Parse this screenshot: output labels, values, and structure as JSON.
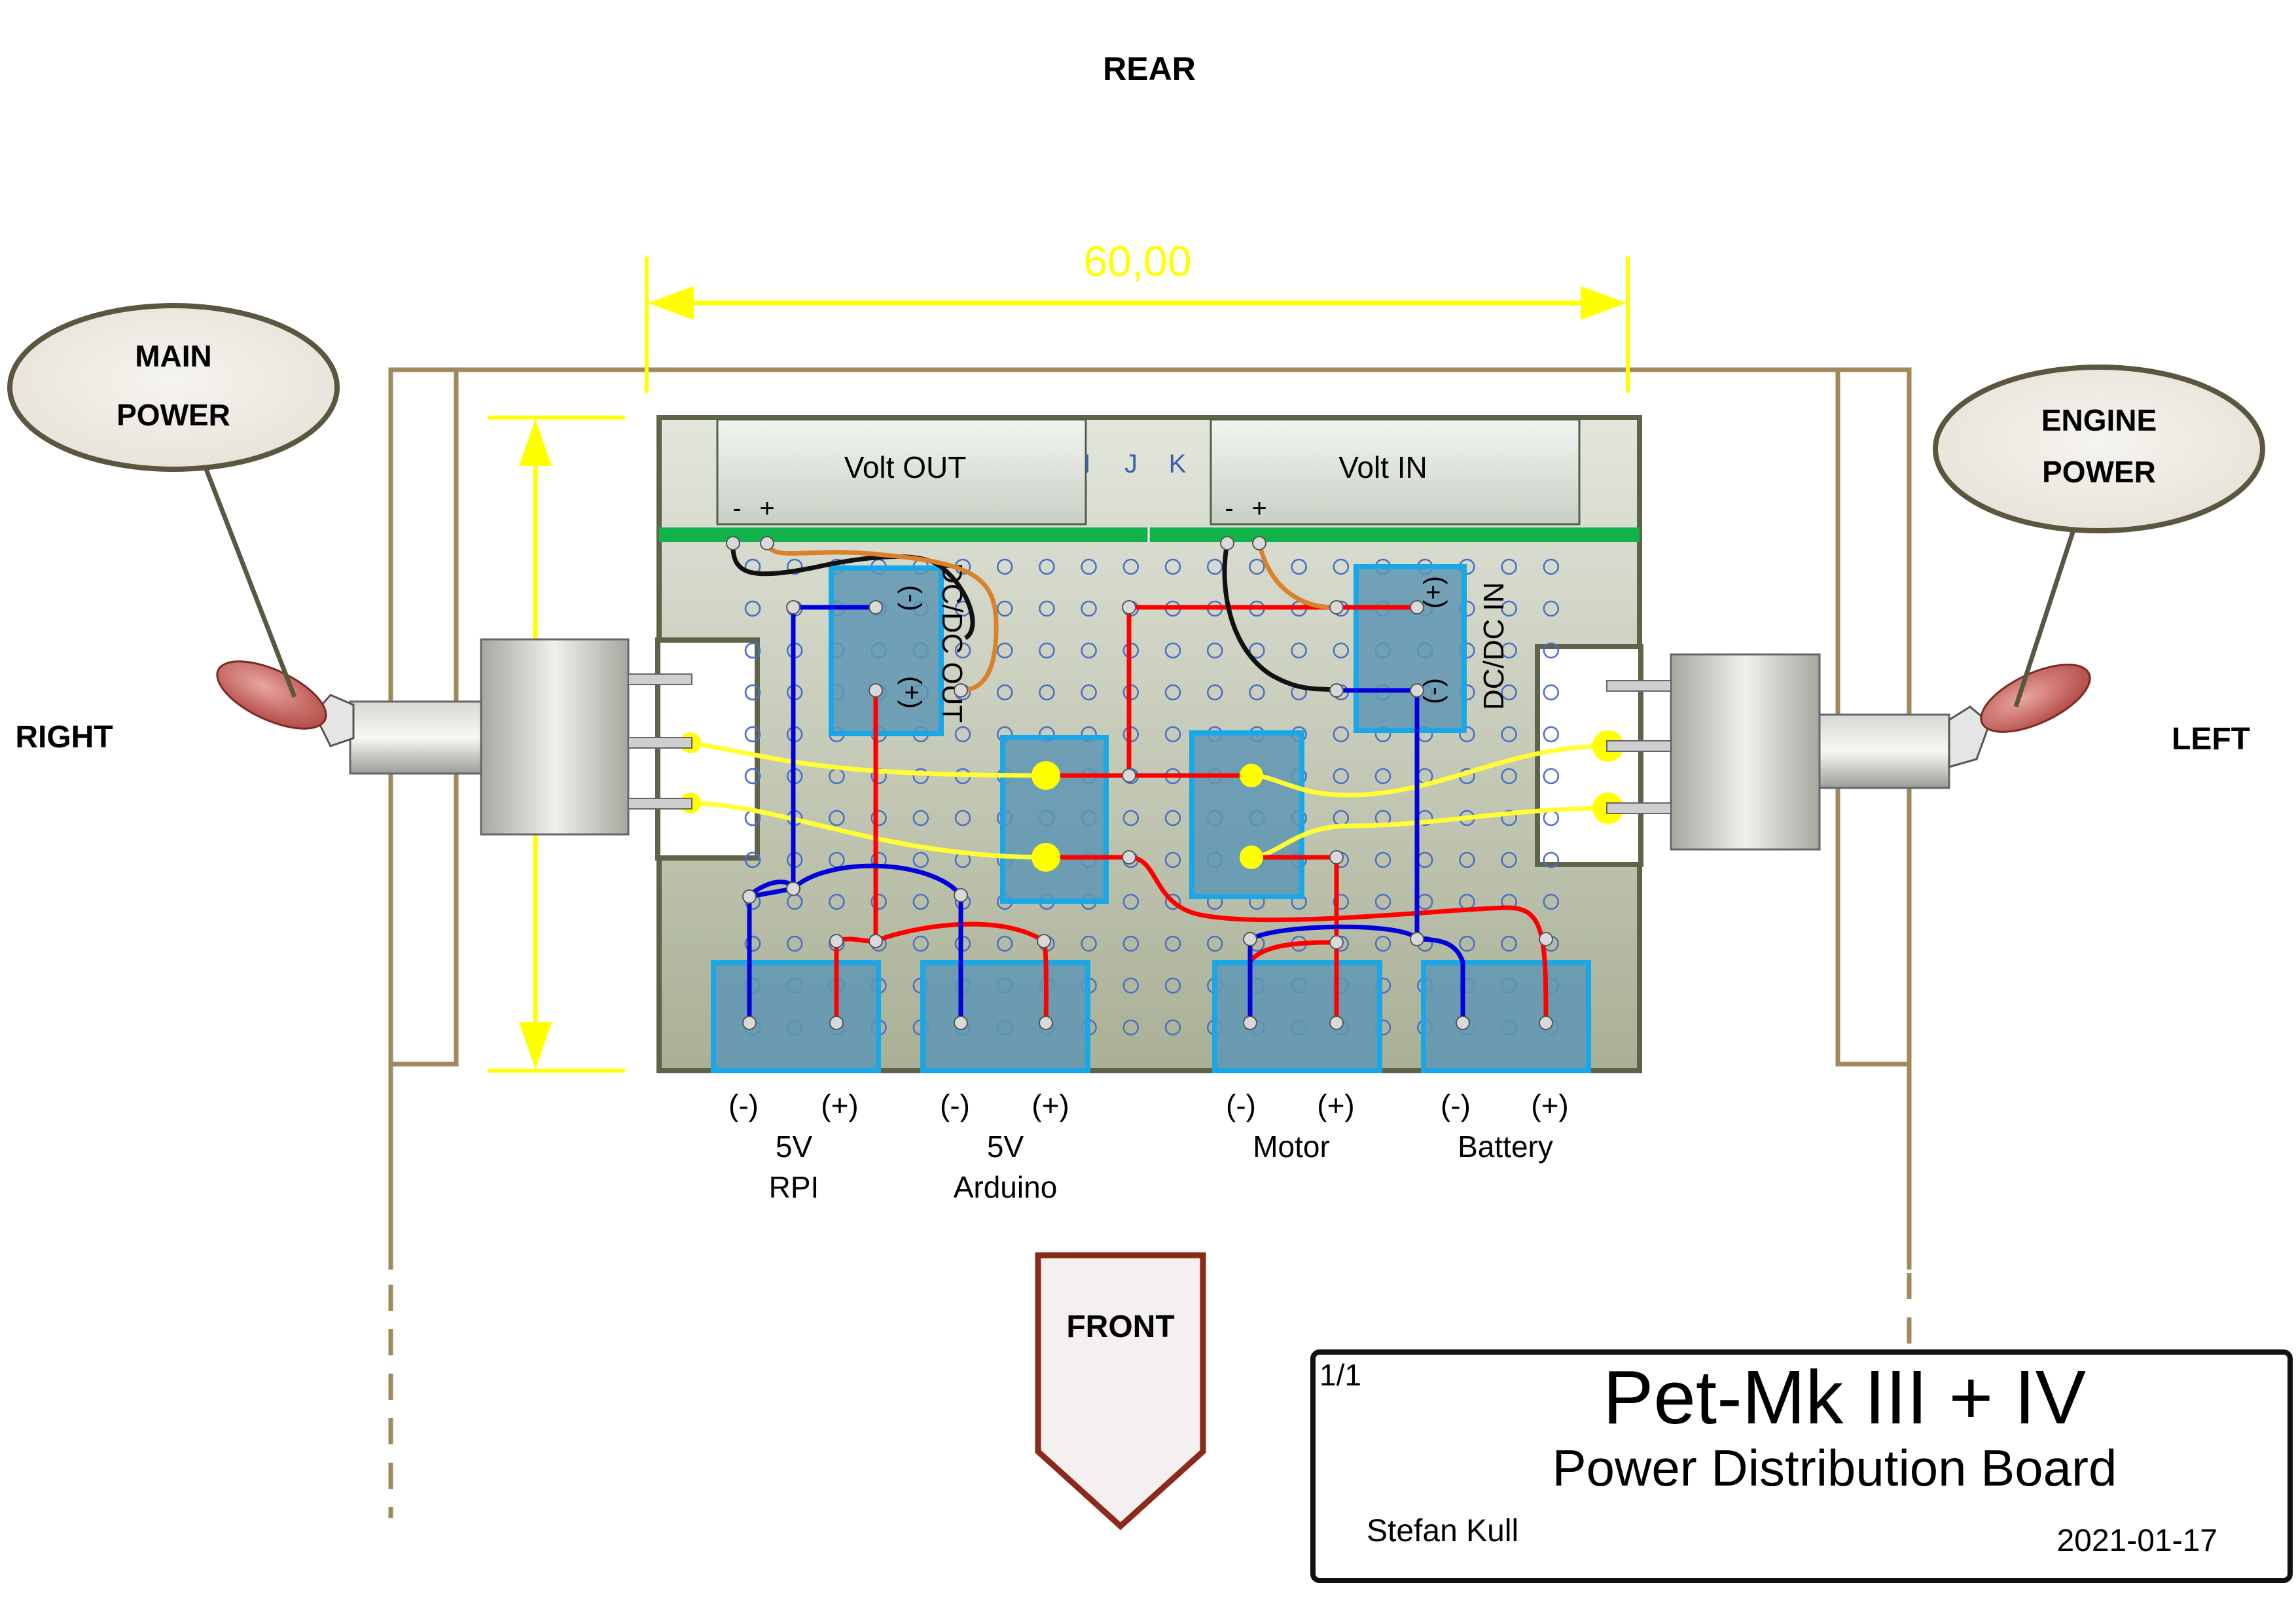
{
  "orientation": {
    "rear": "REAR",
    "front": "FRONT",
    "right": "RIGHT",
    "left": "LEFT"
  },
  "dimension": {
    "value": "60,00"
  },
  "callouts": {
    "main_power": [
      "MAIN",
      "POWER"
    ],
    "engine_power": [
      "ENGINE",
      "POWER"
    ]
  },
  "board": {
    "volt_out": "Volt OUT",
    "volt_in": "Volt IN",
    "minus": "-",
    "plus": "+",
    "column_letters": [
      "I",
      "J",
      "K"
    ],
    "dcdc_out": "DC/DC OUT",
    "dcdc_in": "DC/DC IN",
    "pin_minus": "(-)",
    "pin_plus": "(+)"
  },
  "connectors": [
    {
      "line1": "5V",
      "line2": "RPI",
      "neg": "(-)",
      "pos": "(+)"
    },
    {
      "line1": "5V",
      "line2": "Arduino",
      "neg": "(-)",
      "pos": "(+)"
    },
    {
      "line1": "Motor",
      "line2": "",
      "neg": "(-)",
      "pos": "(+)"
    },
    {
      "line1": "Battery",
      "line2": "",
      "neg": "(-)",
      "pos": "(+)"
    }
  ],
  "title_block": {
    "sheet": "1/1",
    "title": "Pet-Mk III + IV",
    "subtitle": "Power Distribution Board",
    "author": "Stefan Kull",
    "date": "2021-01-17"
  },
  "colors": {
    "board_fill": "#cfd4c4",
    "board_border": "#5d6447",
    "frame": "#a08a5c",
    "dimension": "#ffff00",
    "cyan": "#1aa7e8",
    "block": "#5f97b4",
    "wire_red": "#ff0000",
    "wire_blue": "#0000dd",
    "wire_yellow": "#ffff33",
    "wire_orange": "#d9822b",
    "strip_green": "#11b24a",
    "front_arrow": "#8b2a1a",
    "toggle": "#c0504d"
  }
}
